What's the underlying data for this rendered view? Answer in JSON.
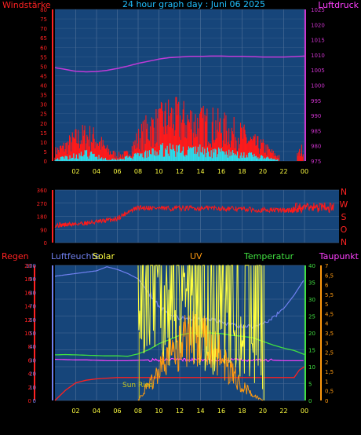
{
  "header": {
    "title": "24 hour graph day : Juni 06 2025",
    "left_label": "Windstärke",
    "right_label": "Luftdruck"
  },
  "colors": {
    "panel_bg": "#16457a",
    "grid": "#4a6d96",
    "wind_axis": "#ff2222",
    "pressure_axis": "#cc33cc",
    "wind": "#ff1a1a",
    "gust_low": "#22e0f0",
    "pressure": "#c03ad8",
    "humidity": "#7080f0",
    "solar": "#ffff40",
    "uv": "#ff9a10",
    "temperature": "#40e040",
    "dewpoint": "#ff40ff",
    "rain": "#ff2020",
    "sunrise": "#c8c820",
    "x_ticks": "#ffff40",
    "direction_labels": "#ff2222"
  },
  "chart_data": [
    {
      "type": "line",
      "title": "24 hour graph day : Juni 06 2025",
      "x_ticks": [
        "02",
        "04",
        "06",
        "08",
        "10",
        "12",
        "14",
        "16",
        "18",
        "20",
        "22",
        "00"
      ],
      "y_left_label": "Windstärke",
      "y_left_ticks": [
        "0",
        "5",
        "10",
        "15",
        "20",
        "25",
        "30",
        "35",
        "40",
        "45",
        "50",
        "55",
        "60",
        "65",
        "70",
        "75",
        "80"
      ],
      "y_left_range": [
        0,
        80
      ],
      "y_right_label": "Luftdruck",
      "y_right_ticks": [
        "975",
        "980",
        "985",
        "990",
        "995",
        "1000",
        "1005",
        "1010",
        "1015",
        "1020",
        "1025"
      ],
      "y_right_range": [
        975,
        1025
      ],
      "series": [
        {
          "key": "pressure",
          "x": [
            0,
            1,
            2,
            3,
            4,
            5,
            6,
            7,
            8,
            9,
            10,
            11,
            12,
            13,
            14,
            15,
            16,
            17,
            18,
            19,
            20,
            21,
            22,
            23,
            24
          ],
          "values": [
            1005.8,
            1005.2,
            1004.6,
            1004.4,
            1004.5,
            1004.9,
            1005.5,
            1006.3,
            1007.2,
            1007.9,
            1008.6,
            1009.1,
            1009.3,
            1009.5,
            1009.5,
            1009.6,
            1009.6,
            1009.5,
            1009.5,
            1009.4,
            1009.3,
            1009.3,
            1009.3,
            1009.4,
            1009.6
          ]
        },
        {
          "key": "wind",
          "x": [
            0,
            1,
            2,
            3,
            4,
            5,
            6,
            7,
            8,
            9,
            10,
            11,
            12,
            13,
            14,
            15,
            16,
            17,
            18,
            19,
            20,
            21,
            22,
            23,
            24
          ],
          "values": [
            5,
            8,
            12,
            14,
            12,
            6,
            3,
            4,
            12,
            18,
            20,
            24,
            22,
            22,
            20,
            20,
            18,
            16,
            14,
            10,
            8,
            4,
            1,
            1,
            8
          ]
        },
        {
          "key": "gust_low",
          "x": [
            0,
            1,
            2,
            3,
            4,
            5,
            6,
            7,
            8,
            9,
            10,
            11,
            12,
            13,
            14,
            15,
            16,
            17,
            18,
            19,
            20,
            21,
            22,
            23,
            24
          ],
          "values": [
            1,
            2,
            3,
            4,
            3,
            1,
            1,
            2,
            3,
            4,
            6,
            7,
            6,
            6,
            6,
            5,
            5,
            4,
            4,
            3,
            2,
            1,
            0,
            0,
            0
          ]
        }
      ]
    },
    {
      "type": "line",
      "y_left_ticks": [
        "0",
        "90",
        "180",
        "270",
        "360"
      ],
      "y_left_range": [
        0,
        360
      ],
      "y_right_ticks": [
        "N",
        "W",
        "S",
        "O",
        "N"
      ],
      "series": [
        {
          "key": "direction",
          "x": [
            0,
            1,
            2,
            3,
            4,
            5,
            6,
            7,
            8,
            9,
            10,
            11,
            12,
            13,
            14,
            15,
            16,
            17,
            18,
            19,
            20,
            21,
            22,
            23,
            24
          ],
          "values": [
            120,
            122,
            128,
            135,
            140,
            152,
            165,
            210,
            238,
            240,
            235,
            232,
            235,
            236,
            235,
            238,
            234,
            232,
            230,
            226,
            222,
            224,
            220,
            222,
            240
          ]
        }
      ]
    },
    {
      "type": "line",
      "labels": {
        "rain": "Regen",
        "humidity": "Luftfeuchte",
        "solar": "Solar",
        "uv": "UV",
        "temperature": "Temperatur",
        "dewpoint": "Taupunkt",
        "sunrise": "Sun Rise"
      },
      "x_ticks": [
        "02",
        "04",
        "06",
        "08",
        "10",
        "12",
        "14",
        "16",
        "18",
        "20",
        "22",
        "00"
      ],
      "y_rain_ticks": [
        "0",
        "2",
        "4",
        "6",
        "8",
        "10",
        "12",
        "14",
        "16",
        "18",
        "20"
      ],
      "y_humidity_ticks": [
        "0",
        "10",
        "20",
        "30",
        "40",
        "50",
        "60",
        "70",
        "80",
        "90",
        "100"
      ],
      "y_temp_ticks": [
        "0",
        "5",
        "10",
        "15",
        "20",
        "25",
        "30",
        "35",
        "40"
      ],
      "y_temp_range": [
        0,
        40
      ],
      "y_uv_ticks": [
        "0",
        "0,5",
        "1",
        "1,5",
        "2",
        "2,5",
        "3",
        "3,5",
        "4",
        "4,5",
        "5",
        "5,5",
        "6",
        "6,5",
        "7"
      ],
      "series": [
        {
          "key": "humidity",
          "x": [
            0,
            1,
            2,
            3,
            4,
            5,
            6,
            7,
            8,
            9,
            10,
            11,
            12,
            13,
            14,
            15,
            16,
            17,
            18,
            19,
            20,
            21,
            22,
            23,
            24
          ],
          "values": [
            92,
            93,
            94,
            95,
            96,
            99,
            97,
            94,
            90,
            80,
            70,
            64,
            61,
            61,
            60,
            60,
            58,
            56,
            55,
            55,
            57,
            61,
            68,
            78,
            90
          ]
        },
        {
          "key": "temperature",
          "x": [
            0,
            1,
            2,
            3,
            4,
            5,
            6,
            7,
            8,
            9,
            10,
            11,
            12,
            13,
            14,
            15,
            16,
            17,
            18,
            19,
            20,
            21,
            22,
            23,
            24
          ],
          "values": [
            13.5,
            13.6,
            13.5,
            13.4,
            13.3,
            13.2,
            13.2,
            13.1,
            13.8,
            15.0,
            16.8,
            18.0,
            19.3,
            20.0,
            20.0,
            20.0,
            19.8,
            19.3,
            19.0,
            18.6,
            17.5,
            16.4,
            15.5,
            14.8,
            13.6
          ]
        },
        {
          "key": "dewpoint",
          "x": [
            0,
            1,
            2,
            3,
            4,
            5,
            6,
            7,
            8,
            9,
            10,
            11,
            12,
            13,
            14,
            15,
            16,
            17,
            18,
            19,
            20,
            21,
            22,
            23,
            24
          ],
          "values": [
            12.2,
            12.1,
            12.0,
            12.0,
            11.9,
            11.8,
            11.8,
            11.8,
            11.9,
            12.0,
            12.0,
            12.1,
            12.1,
            12.1,
            12.0,
            12.0,
            12.0,
            12.0,
            12.0,
            11.9,
            11.9,
            11.9,
            11.8,
            11.8,
            11.8
          ]
        },
        {
          "key": "rain",
          "x": [
            0,
            1,
            2,
            3,
            4,
            5,
            6,
            7,
            8,
            9,
            10,
            11,
            12,
            13,
            14,
            15,
            16,
            17,
            18,
            19,
            20,
            21,
            22,
            23,
            23.5,
            24
          ],
          "values": [
            0,
            1.5,
            2.6,
            3.0,
            3.2,
            3.3,
            3.4,
            3.4,
            3.4,
            3.4,
            3.4,
            3.4,
            3.4,
            3.4,
            3.4,
            3.4,
            3.4,
            3.4,
            3.4,
            3.4,
            3.4,
            3.4,
            3.4,
            3.4,
            4.5,
            5.0
          ]
        },
        {
          "key": "uv",
          "x": [
            8,
            9,
            10,
            11,
            12,
            13,
            14,
            15,
            16,
            17,
            18,
            19,
            20
          ],
          "values": [
            0,
            0.8,
            1.5,
            2.2,
            2.8,
            3.2,
            3.1,
            2.8,
            2.2,
            1.4,
            0.8,
            0.3,
            0
          ]
        },
        {
          "key": "solar",
          "x": [
            8,
            9,
            10,
            11,
            12,
            13,
            14,
            15,
            16,
            17,
            18,
            19,
            20
          ],
          "values": [
            20,
            18,
            15,
            14,
            19,
            13,
            16,
            10,
            14,
            9,
            12,
            8,
            5
          ]
        }
      ]
    }
  ]
}
